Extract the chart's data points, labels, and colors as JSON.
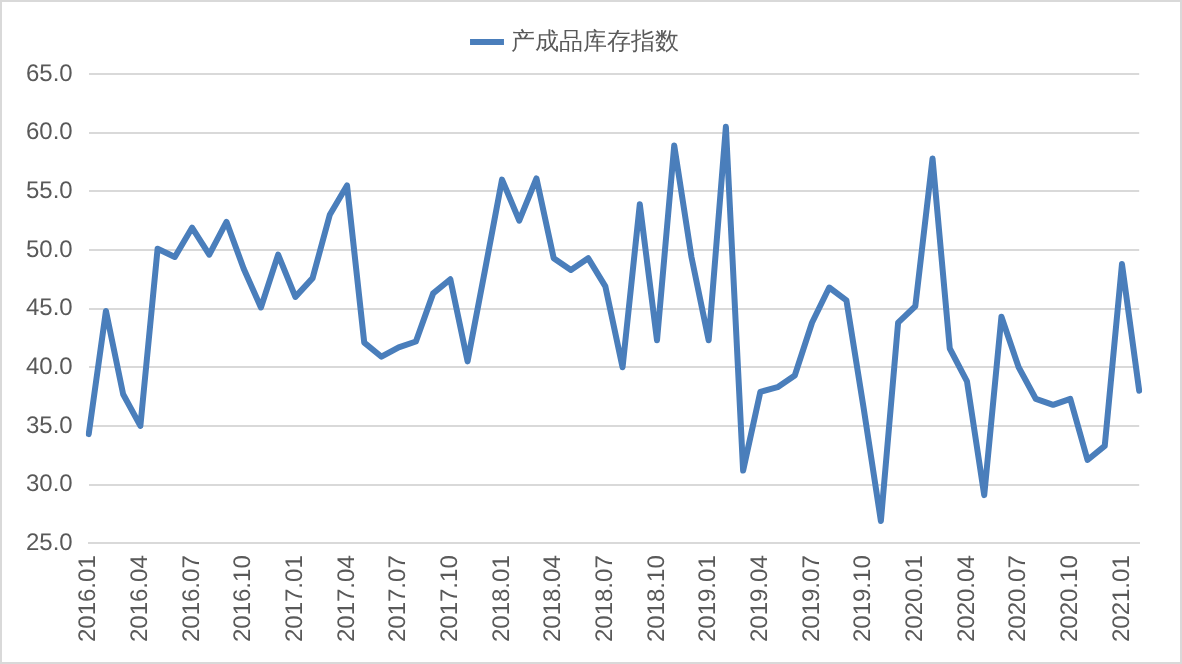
{
  "chart_data": {
    "type": "line",
    "categories": [
      "2016.01",
      null,
      null,
      "2016.04",
      null,
      null,
      "2016.07",
      null,
      null,
      "2016.10",
      null,
      null,
      "2017.01",
      null,
      null,
      "2017.04",
      null,
      null,
      "2017.07",
      null,
      null,
      "2017.10",
      null,
      null,
      "2018.01",
      null,
      null,
      "2018.04",
      null,
      null,
      "2018.07",
      null,
      null,
      "2018.10",
      null,
      null,
      "2019.01",
      null,
      null,
      "2019.04",
      null,
      null,
      "2019.07",
      null,
      null,
      "2019.10",
      null,
      null,
      "2020.01",
      null,
      null,
      "2020.04",
      null,
      null,
      "2020.07",
      null,
      null,
      "2020.10",
      null,
      null,
      "2021.01",
      null
    ],
    "series": [
      {
        "name": "产成品库存指数",
        "color": "#4a7ebb",
        "values": [
          34.3,
          44.8,
          37.7,
          35.0,
          50.1,
          49.4,
          51.9,
          49.6,
          52.4,
          48.4,
          45.1,
          49.6,
          46.0,
          47.6,
          53.0,
          55.5,
          42.1,
          40.9,
          41.7,
          42.2,
          46.3,
          47.5,
          40.5,
          48.2,
          56.0,
          52.5,
          56.1,
          49.3,
          48.3,
          49.3,
          46.9,
          40.0,
          53.9,
          42.3,
          58.9,
          49.4,
          42.3,
          60.5,
          31.2,
          37.9,
          38.3,
          39.3,
          43.8,
          46.8,
          45.7,
          36.5,
          26.9,
          43.8,
          45.2,
          57.8,
          41.6,
          38.8,
          29.1,
          44.3,
          40.0,
          37.3,
          36.8,
          37.3,
          32.1,
          33.3,
          48.8,
          38.0
        ]
      }
    ],
    "ylim": [
      25,
      65
    ],
    "yticks": [
      {
        "value": 25,
        "label": "25.0"
      },
      {
        "value": 30,
        "label": "30.0"
      },
      {
        "value": 35,
        "label": "35.0"
      },
      {
        "value": 40,
        "label": "40.0"
      },
      {
        "value": 45,
        "label": "45.0"
      },
      {
        "value": 50,
        "label": "50.0"
      },
      {
        "value": 55,
        "label": "55.0"
      },
      {
        "value": 60,
        "label": "60.0"
      },
      {
        "value": 65,
        "label": "65.0"
      }
    ],
    "grid": "y",
    "legend": "top",
    "marker": "none",
    "line_style": "solid"
  }
}
